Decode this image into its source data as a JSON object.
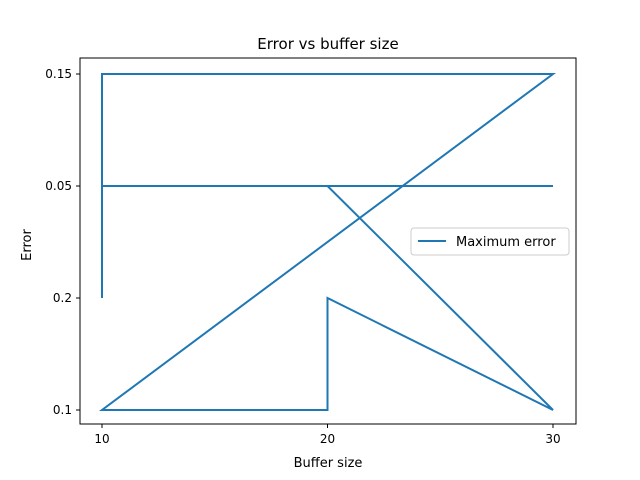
{
  "chart_data": {
    "type": "line",
    "title": "Error vs buffer size",
    "xlabel": "Buffer size",
    "ylabel": "Error",
    "x_axis": {
      "scale": "categorical",
      "categories": [
        "10",
        "20",
        "30"
      ]
    },
    "y_axis": {
      "scale": "categorical",
      "categories": [
        "0.1",
        "0.2",
        "0.05",
        "0.15"
      ]
    },
    "grid": false,
    "legend": {
      "placement": "center-right",
      "entries": [
        "Maximum error"
      ]
    },
    "series": [
      {
        "name": "Maximum error",
        "color": "#1f77b4",
        "points": [
          {
            "x": "10",
            "y": "0.2"
          },
          {
            "x": "10",
            "y": "0.15"
          },
          {
            "x": "30",
            "y": "0.15"
          },
          {
            "x": "10",
            "y": "0.1"
          },
          {
            "x": "20",
            "y": "0.1"
          },
          {
            "x": "20",
            "y": "0.2"
          },
          {
            "x": "30",
            "y": "0.1"
          },
          {
            "x": "20",
            "y": "0.05"
          },
          {
            "x": "10",
            "y": "0.05"
          },
          {
            "x": "30",
            "y": "0.05"
          }
        ]
      }
    ]
  }
}
